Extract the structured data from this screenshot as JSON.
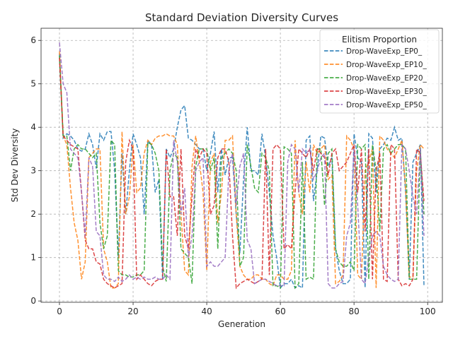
{
  "chart_data": {
    "type": "line",
    "title": "Standard Deviation Diversity Curves",
    "xlabel": "Generation",
    "ylabel": "Std Dev Diversity",
    "xlim": [
      -5,
      104
    ],
    "ylim": [
      -0.03,
      6.28
    ],
    "xticks": [
      0,
      20,
      40,
      60,
      80,
      100
    ],
    "yticks": [
      0,
      1,
      2,
      3,
      4,
      5,
      6
    ],
    "grid": true,
    "line_style": "dashed",
    "legend": {
      "title": "Elitism Proportion",
      "placement": "top-right"
    },
    "series": [
      {
        "name": "Drop-WaveExp_EP0_",
        "color": "#1f77b4",
        "x": [
          0,
          1,
          2,
          3,
          4,
          5,
          6,
          7,
          8,
          9,
          10,
          11,
          12,
          13,
          14,
          15,
          16,
          17,
          18,
          19,
          20,
          21,
          22,
          23,
          24,
          25,
          26,
          27,
          28,
          29,
          30,
          31,
          32,
          33,
          34,
          35,
          36,
          37,
          38,
          39,
          40,
          41,
          42,
          43,
          44,
          45,
          46,
          47,
          48,
          49,
          50,
          51,
          52,
          53,
          54,
          55,
          56,
          57,
          58,
          59,
          60,
          61,
          62,
          63,
          64,
          65,
          66,
          67,
          68,
          69,
          70,
          71,
          72,
          73,
          74,
          75,
          76,
          77,
          78,
          79,
          80,
          81,
          82,
          83,
          84,
          85,
          86,
          87,
          88,
          89,
          90,
          91,
          92,
          93,
          94,
          95,
          96,
          97,
          98,
          99
        ],
        "values": [
          5.7,
          3.75,
          3.85,
          3.8,
          3.7,
          3.5,
          3.45,
          3.5,
          3.85,
          3.6,
          3.05,
          3.85,
          3.7,
          3.9,
          3.9,
          3.0,
          1.0,
          3.4,
          2.0,
          3.0,
          3.85,
          3.6,
          3.3,
          2.0,
          3.7,
          3.6,
          2.5,
          2.8,
          0.5,
          3.5,
          3.3,
          3.5,
          4.0,
          4.4,
          4.5,
          3.75,
          3.7,
          3.6,
          3.5,
          3.5,
          3.0,
          3.4,
          3.9,
          2.5,
          3.5,
          2.9,
          3.3,
          3.3,
          2.0,
          1.1,
          2.8,
          4.0,
          3.0,
          3.0,
          2.9,
          3.85,
          3.3,
          2.5,
          1.5,
          1.0,
          0.3,
          0.4,
          0.4,
          0.5,
          0.3,
          0.35,
          0.3,
          3.7,
          3.8,
          2.3,
          3.0,
          3.8,
          3.75,
          3.1,
          3.3,
          1.2,
          0.7,
          0.4,
          0.4,
          0.5,
          3.85,
          3.3,
          3.2,
          0.3,
          3.85,
          3.75,
          2.5,
          3.5,
          3.6,
          3.75,
          3.7,
          4.0,
          3.7,
          3.75,
          2.5,
          0.5,
          3.2,
          3.4,
          3.6,
          0.35
        ]
      },
      {
        "name": "Drop-WaveExp_EP10_",
        "color": "#ff7f0e",
        "x": [
          0,
          1,
          2,
          3,
          4,
          5,
          6,
          7,
          8,
          9,
          10,
          11,
          12,
          13,
          14,
          15,
          16,
          17,
          18,
          19,
          20,
          21,
          22,
          23,
          24,
          25,
          26,
          27,
          28,
          29,
          30,
          31,
          32,
          33,
          34,
          35,
          36,
          37,
          38,
          39,
          40,
          41,
          42,
          43,
          44,
          45,
          46,
          47,
          48,
          49,
          50,
          51,
          52,
          53,
          54,
          55,
          56,
          57,
          58,
          59,
          60,
          61,
          62,
          63,
          64,
          65,
          66,
          67,
          68,
          69,
          70,
          71,
          72,
          73,
          74,
          75,
          76,
          77,
          78,
          79,
          80,
          81,
          82,
          83,
          84,
          85,
          86,
          87,
          88,
          89,
          90,
          91,
          92,
          93,
          94,
          95,
          96,
          97,
          98,
          99
        ],
        "values": [
          5.75,
          3.8,
          3.6,
          2.6,
          1.8,
          1.4,
          0.5,
          0.9,
          3.3,
          3.4,
          3.5,
          3.5,
          1.2,
          0.9,
          0.3,
          0.3,
          0.4,
          3.9,
          2.0,
          2.4,
          3.6,
          2.5,
          2.6,
          3.4,
          3.7,
          3.6,
          3.75,
          3.8,
          3.8,
          3.85,
          3.8,
          3.8,
          3.6,
          2.0,
          0.7,
          0.6,
          3.1,
          3.8,
          3.2,
          2.5,
          0.7,
          3.2,
          3.4,
          1.8,
          2.5,
          3.7,
          3.7,
          3.8,
          2.0,
          0.8,
          0.6,
          0.5,
          0.5,
          0.6,
          0.6,
          0.5,
          0.5,
          0.4,
          0.35,
          0.6,
          0.6,
          0.5,
          0.5,
          0.7,
          3.7,
          2.5,
          2.0,
          3.2,
          2.5,
          3.6,
          3.4,
          3.5,
          3.6,
          2.8,
          2.9,
          0.4,
          0.45,
          0.6,
          3.8,
          3.7,
          3.5,
          0.6,
          0.5,
          3.0,
          3.2,
          3.5,
          0.3,
          3.8,
          3.7,
          3.5,
          3.4,
          3.3,
          3.5,
          3.7,
          2.6,
          0.55,
          0.55,
          3.0,
          3.6,
          3.5
        ]
      },
      {
        "name": "Drop-WaveExp_EP20_",
        "color": "#2ca02c",
        "x": [
          0,
          1,
          2,
          3,
          4,
          5,
          6,
          7,
          8,
          9,
          10,
          11,
          12,
          13,
          14,
          15,
          16,
          17,
          18,
          19,
          20,
          21,
          22,
          23,
          24,
          25,
          26,
          27,
          28,
          29,
          30,
          31,
          32,
          33,
          34,
          35,
          36,
          37,
          38,
          39,
          40,
          41,
          42,
          43,
          44,
          45,
          46,
          47,
          48,
          49,
          50,
          51,
          52,
          53,
          54,
          55,
          56,
          57,
          58,
          59,
          60,
          61,
          62,
          63,
          64,
          65,
          66,
          67,
          68,
          69,
          70,
          71,
          72,
          73,
          74,
          75,
          76,
          77,
          78,
          79,
          80,
          81,
          82,
          83,
          84,
          85,
          86,
          87,
          88,
          89,
          90,
          91,
          92,
          93,
          94,
          95,
          96,
          97,
          98,
          99
        ],
        "values": [
          5.65,
          3.8,
          3.8,
          3.0,
          3.5,
          3.6,
          3.5,
          3.5,
          3.4,
          3.3,
          3.4,
          1.8,
          1.2,
          1.5,
          3.7,
          3.6,
          0.7,
          0.6,
          0.6,
          0.55,
          0.55,
          0.6,
          0.6,
          0.7,
          3.65,
          3.6,
          3.4,
          3.0,
          0.8,
          0.45,
          3.0,
          3.4,
          3.3,
          1.2,
          1.1,
          1.0,
          0.4,
          3.1,
          3.5,
          3.5,
          3.5,
          3.0,
          3.3,
          1.2,
          3.3,
          3.4,
          3.5,
          3.4,
          3.0,
          0.8,
          1.0,
          3.6,
          3.1,
          2.6,
          2.5,
          3.4,
          3.3,
          3.0,
          0.35,
          0.35,
          0.3,
          3.55,
          3.5,
          3.4,
          0.3,
          0.4,
          3.2,
          0.5,
          0.55,
          0.5,
          3.5,
          3.5,
          2.2,
          3.4,
          3.5,
          1.2,
          0.9,
          0.8,
          0.8,
          0.9,
          0.7,
          3.6,
          3.5,
          3.6,
          0.5,
          3.6,
          3.0,
          1.6,
          3.5,
          3.6,
          3.4,
          3.5,
          3.6,
          3.6,
          3.5,
          0.5,
          0.5,
          0.5,
          3.5,
          2.0
        ]
      },
      {
        "name": "Drop-WaveExp_EP30_",
        "color": "#d62728",
        "x": [
          0,
          1,
          2,
          3,
          4,
          5,
          6,
          7,
          8,
          9,
          10,
          11,
          12,
          13,
          14,
          15,
          16,
          17,
          18,
          19,
          20,
          21,
          22,
          23,
          24,
          25,
          26,
          27,
          28,
          29,
          30,
          31,
          32,
          33,
          34,
          35,
          36,
          37,
          38,
          39,
          40,
          41,
          42,
          43,
          44,
          45,
          46,
          47,
          48,
          49,
          50,
          51,
          52,
          53,
          54,
          55,
          56,
          57,
          58,
          59,
          60,
          61,
          62,
          63,
          64,
          65,
          66,
          67,
          68,
          69,
          70,
          71,
          72,
          73,
          74,
          75,
          76,
          77,
          78,
          79,
          80,
          81,
          82,
          83,
          84,
          85,
          86,
          87,
          88,
          89,
          90,
          91,
          92,
          93,
          94,
          95,
          96,
          97,
          98,
          99
        ],
        "values": [
          5.6,
          3.8,
          3.7,
          3.6,
          3.55,
          3.5,
          2.5,
          1.4,
          1.2,
          1.2,
          0.9,
          0.85,
          0.5,
          0.4,
          0.35,
          0.3,
          0.35,
          0.4,
          3.2,
          3.7,
          3.5,
          0.5,
          0.6,
          0.5,
          0.4,
          0.35,
          0.45,
          0.5,
          0.5,
          3.5,
          2.4,
          2.4,
          1.5,
          3.5,
          1.5,
          1.2,
          2.4,
          3.5,
          3.3,
          3.5,
          3.4,
          2.0,
          2.2,
          3.3,
          3.5,
          3.5,
          3.2,
          1.5,
          0.3,
          0.4,
          0.45,
          0.5,
          0.45,
          0.4,
          0.45,
          0.5,
          3.5,
          0.6,
          3.5,
          3.6,
          3.5,
          1.2,
          1.3,
          1.2,
          2.5,
          3.5,
          3.4,
          3.3,
          3.5,
          3.0,
          3.5,
          3.4,
          3.3,
          2.9,
          3.4,
          3.5,
          3.0,
          3.1,
          3.2,
          3.4,
          3.6,
          2.5,
          3.5,
          1.6,
          3.5,
          0.5,
          3.0,
          3.4,
          0.5,
          0.45,
          3.6,
          3.5,
          0.5,
          0.35,
          0.4,
          0.35,
          0.5,
          3.5,
          3.4,
          2.3
        ]
      },
      {
        "name": "Drop-WaveExp_EP50_",
        "color": "#9467bd",
        "x": [
          0,
          1,
          2,
          3,
          4,
          5,
          6,
          7,
          8,
          9,
          10,
          11,
          12,
          13,
          14,
          15,
          16,
          17,
          18,
          19,
          20,
          21,
          22,
          23,
          24,
          25,
          26,
          27,
          28,
          29,
          30,
          31,
          32,
          33,
          34,
          35,
          36,
          37,
          38,
          39,
          40,
          41,
          42,
          43,
          44,
          45,
          46,
          47,
          48,
          49,
          50,
          51,
          52,
          53,
          54,
          55,
          56,
          57,
          58,
          59,
          60,
          61,
          62,
          63,
          64,
          65,
          66,
          67,
          68,
          69,
          70,
          71,
          72,
          73,
          74,
          75,
          76,
          77,
          78,
          79,
          80,
          81,
          82,
          83,
          84,
          85,
          86,
          87,
          88,
          89,
          90,
          91,
          92,
          93,
          94,
          95,
          96,
          97,
          98,
          99
        ],
        "values": [
          5.95,
          5.0,
          4.8,
          3.5,
          3.4,
          3.3,
          2.5,
          1.5,
          3.3,
          3.1,
          1.6,
          1.5,
          0.6,
          0.5,
          0.5,
          0.45,
          0.55,
          0.45,
          0.5,
          0.6,
          0.5,
          0.55,
          0.5,
          0.55,
          0.5,
          0.5,
          0.55,
          0.5,
          0.5,
          0.6,
          0.5,
          3.7,
          3.2,
          2.0,
          2.6,
          1.0,
          1.5,
          3.0,
          3.2,
          3.3,
          0.8,
          0.9,
          0.8,
          0.8,
          0.9,
          1.0,
          3.0,
          3.4,
          2.2,
          3.1,
          3.4,
          1.4,
          1.2,
          0.4,
          0.45,
          0.5,
          0.5,
          0.45,
          0.4,
          0.35,
          0.35,
          0.35,
          3.2,
          3.6,
          3.5,
          2.5,
          3.5,
          3.4,
          3.5,
          2.8,
          3.0,
          3.3,
          3.4,
          0.4,
          0.3,
          0.3,
          0.4,
          0.45,
          1.5,
          1.8,
          3.5,
          2.2,
          0.5,
          0.4,
          1.0,
          1.5,
          1.6,
          1.5,
          0.8,
          0.6,
          0.5,
          0.45,
          0.5,
          3.6,
          3.5,
          3.0,
          2.4,
          2.0,
          3.5,
          1.5
        ]
      }
    ]
  }
}
